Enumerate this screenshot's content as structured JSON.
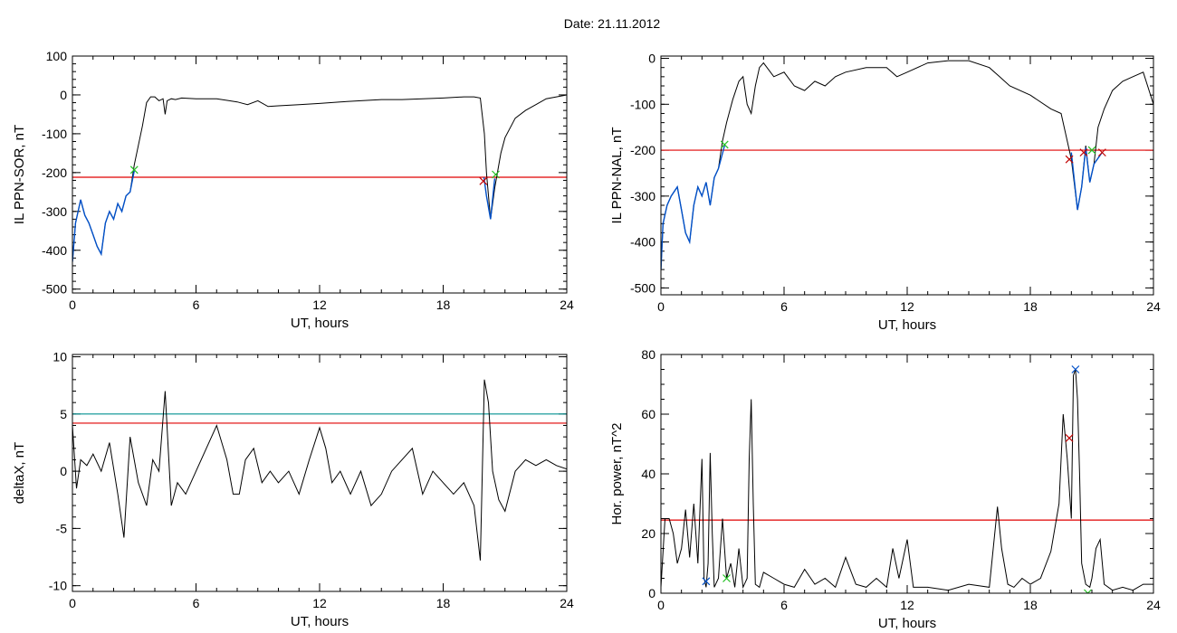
{
  "figure": {
    "title": "Date:  21.11.2012"
  },
  "chart_data": [
    {
      "id": "panel1",
      "type": "line",
      "xlabel": "UT, hours",
      "ylabel": "IL PPN-SOR, nT",
      "xlim": [
        0,
        24
      ],
      "ylim": [
        -510,
        100
      ],
      "xticks": [
        0,
        6,
        12,
        18,
        24
      ],
      "yticks": [
        100,
        0,
        -100,
        -200,
        -300,
        -400,
        -500
      ],
      "threshold": {
        "color": "#e00000",
        "value": -212
      },
      "series": [
        {
          "color": "#000000",
          "x": [
            0,
            0.15,
            0.4,
            0.6,
            0.8,
            1.0,
            1.2,
            1.4,
            1.6,
            1.8,
            2.0,
            2.2,
            2.4,
            2.6,
            2.8,
            3.0,
            3.2,
            3.4,
            3.6,
            3.8,
            4.0,
            4.2,
            4.4,
            4.5,
            4.6,
            4.8,
            5.0,
            5.3,
            6.0,
            7.0,
            8.0,
            8.5,
            9.0,
            9.5,
            10.0,
            11.0,
            12.0,
            13.0,
            14.0,
            15.0,
            16.0,
            17.0,
            18.0,
            19.0,
            19.5,
            19.8,
            20.0,
            20.1,
            20.3,
            20.5,
            20.8,
            21.0,
            21.5,
            22.0,
            22.5,
            23.0,
            23.5,
            24.0
          ],
          "y": [
            -430,
            -330,
            -270,
            -310,
            -330,
            -360,
            -390,
            -410,
            -330,
            -300,
            -320,
            -280,
            -300,
            -260,
            -250,
            -180,
            -130,
            -80,
            -20,
            -5,
            -5,
            -15,
            -10,
            -50,
            -15,
            -10,
            -12,
            -8,
            -10,
            -10,
            -18,
            -25,
            -15,
            -30,
            -28,
            -25,
            -22,
            -18,
            -15,
            -12,
            -12,
            -10,
            -8,
            -5,
            -5,
            -8,
            -100,
            -200,
            -320,
            -240,
            -150,
            -110,
            -60,
            -40,
            -25,
            -10,
            -5,
            0
          ]
        },
        {
          "color": "#0050c8",
          "x": [
            0,
            0.15,
            0.4,
            0.6,
            0.8,
            1.0,
            1.2,
            1.4,
            1.6,
            1.8,
            2.0,
            2.2,
            2.4,
            2.6,
            2.8,
            3.0
          ],
          "y": [
            -430,
            -330,
            -270,
            -310,
            -330,
            -360,
            -390,
            -410,
            -330,
            -300,
            -320,
            -280,
            -300,
            -260,
            -250,
            -195
          ]
        },
        {
          "color": "#0050c8",
          "x": [
            19.98,
            20.1,
            20.3,
            20.5
          ],
          "y": [
            -212,
            -260,
            -320,
            -215
          ]
        }
      ],
      "markers": [
        {
          "x": 3.0,
          "y": -193,
          "color": "#22c022"
        },
        {
          "x": 19.95,
          "y": -222,
          "color": "#c00000"
        },
        {
          "x": 20.55,
          "y": -205,
          "color": "#22c022"
        }
      ]
    },
    {
      "id": "panel2",
      "type": "line",
      "xlabel": "UT, hours",
      "ylabel": "IL PPN-NAL, nT",
      "xlim": [
        0,
        24
      ],
      "ylim": [
        -515,
        5
      ],
      "xticks": [
        0,
        6,
        12,
        18,
        24
      ],
      "yticks": [
        0,
        -100,
        -200,
        -300,
        -400,
        -500
      ],
      "threshold": {
        "color": "#e00000",
        "value": -200
      },
      "series": [
        {
          "color": "#000000",
          "x": [
            0,
            0.1,
            0.3,
            0.5,
            0.8,
            1.0,
            1.2,
            1.4,
            1.6,
            1.8,
            2.0,
            2.2,
            2.4,
            2.6,
            2.8,
            3.0,
            3.2,
            3.5,
            3.8,
            4.0,
            4.2,
            4.4,
            4.6,
            4.8,
            5.0,
            5.5,
            6.0,
            6.5,
            7.0,
            7.5,
            8.0,
            8.5,
            9.0,
            10.0,
            11.0,
            11.5,
            12.0,
            13.0,
            14.0,
            15.0,
            16.0,
            16.5,
            17.0,
            18.0,
            19.0,
            19.5,
            20.0,
            20.3,
            20.5,
            20.7,
            20.9,
            21.1,
            21.3,
            21.6,
            22.0,
            22.5,
            23.0,
            23.5,
            24.0
          ],
          "y": [
            -460,
            -360,
            -320,
            -300,
            -280,
            -330,
            -380,
            -400,
            -320,
            -280,
            -300,
            -270,
            -320,
            -260,
            -240,
            -180,
            -140,
            -90,
            -50,
            -40,
            -100,
            -120,
            -60,
            -20,
            -10,
            -40,
            -30,
            -60,
            -70,
            -50,
            -60,
            -40,
            -30,
            -20,
            -20,
            -40,
            -30,
            -10,
            -5,
            -5,
            -20,
            -40,
            -60,
            -80,
            -110,
            -120,
            -220,
            -330,
            -280,
            -190,
            -270,
            -230,
            -150,
            -110,
            -70,
            -50,
            -40,
            -30,
            -100
          ]
        },
        {
          "color": "#0050c8",
          "x": [
            0,
            0.1,
            0.3,
            0.5,
            0.8,
            1.0,
            1.2,
            1.4,
            1.6,
            1.8,
            2.0,
            2.2,
            2.4,
            2.6,
            2.8,
            3.1
          ],
          "y": [
            -460,
            -360,
            -320,
            -300,
            -280,
            -330,
            -380,
            -400,
            -320,
            -280,
            -300,
            -270,
            -320,
            -260,
            -240,
            -190
          ]
        },
        {
          "color": "#0050c8",
          "x": [
            20.0,
            20.3,
            20.5,
            20.7,
            20.9,
            21.1,
            21.5
          ],
          "y": [
            -205,
            -330,
            -280,
            -195,
            -270,
            -230,
            -205
          ]
        }
      ],
      "markers": [
        {
          "x": 3.1,
          "y": -188,
          "color": "#22c022"
        },
        {
          "x": 19.9,
          "y": -220,
          "color": "#c00000"
        },
        {
          "x": 20.6,
          "y": -205,
          "color": "#c00000"
        },
        {
          "x": 21.0,
          "y": -200,
          "color": "#22c022"
        },
        {
          "x": 21.5,
          "y": -205,
          "color": "#c00000"
        }
      ]
    },
    {
      "id": "panel3",
      "type": "line",
      "xlabel": "UT, hours",
      "ylabel": "deltaX, nT",
      "xlim": [
        0,
        24
      ],
      "ylim": [
        -10.5,
        10.2
      ],
      "xticks": [
        0,
        6,
        12,
        18,
        24
      ],
      "yticks": [
        10,
        5,
        0,
        -5,
        -10
      ],
      "threshold": {
        "color": "#e00000",
        "value": 4.2
      },
      "threshold2": {
        "color": "#009090",
        "value": 5.0
      },
      "series": [
        {
          "color": "#000000",
          "x": [
            0,
            0.2,
            0.4,
            0.7,
            1.0,
            1.4,
            1.8,
            2.2,
            2.5,
            2.8,
            3.2,
            3.6,
            3.9,
            4.2,
            4.5,
            4.8,
            5.1,
            5.5,
            6.0,
            6.5,
            7.0,
            7.5,
            7.8,
            8.1,
            8.4,
            8.8,
            9.2,
            9.6,
            10.0,
            10.5,
            11.0,
            11.5,
            12.0,
            12.3,
            12.6,
            13.0,
            13.5,
            14.0,
            14.5,
            15.0,
            15.5,
            16.0,
            16.5,
            17.0,
            17.5,
            18.0,
            18.5,
            19.0,
            19.5,
            19.8,
            20.0,
            20.2,
            20.4,
            20.7,
            21.0,
            21.5,
            22.0,
            22.5,
            23.0,
            23.5,
            24.0
          ],
          "y": [
            4,
            -1.5,
            1,
            0.5,
            1.5,
            0,
            2.5,
            -2,
            -5.8,
            3,
            -1,
            -3,
            1,
            0,
            7,
            -3,
            -1,
            -2,
            0,
            2,
            4,
            1,
            -2,
            -2,
            1,
            2,
            -1,
            0,
            -1,
            0,
            -2,
            1,
            3.8,
            2,
            -1,
            0,
            -2,
            0,
            -3,
            -2,
            0,
            1,
            2,
            -2,
            0,
            -1,
            -2,
            -1,
            -3,
            -7.8,
            8,
            6,
            0,
            -2.5,
            -3.5,
            0,
            1,
            0.5,
            1,
            0.5,
            0.2
          ]
        }
      ],
      "markers": []
    },
    {
      "id": "panel4",
      "type": "line",
      "xlabel": "UT, hours",
      "ylabel": "Hor. power, nT^2",
      "xlim": [
        0,
        24
      ],
      "ylim": [
        0,
        80
      ],
      "xticks": [
        0,
        6,
        12,
        18,
        24
      ],
      "yticks": [
        0,
        20,
        40,
        60,
        80
      ],
      "threshold": {
        "color": "#e00000",
        "value": 24.5
      },
      "series": [
        {
          "color": "#000000",
          "x": [
            0,
            0.2,
            0.4,
            0.6,
            0.8,
            1.0,
            1.2,
            1.4,
            1.6,
            1.8,
            2.0,
            2.1,
            2.2,
            2.3,
            2.4,
            2.5,
            2.6,
            2.8,
            3.0,
            3.2,
            3.4,
            3.6,
            3.8,
            4.0,
            4.2,
            4.3,
            4.4,
            4.5,
            4.6,
            4.8,
            5.0,
            5.5,
            6.0,
            6.5,
            7.0,
            7.5,
            8.0,
            8.5,
            9.0,
            9.5,
            10.0,
            10.5,
            11.0,
            11.3,
            11.6,
            12.0,
            12.3,
            12.6,
            13.0,
            14.0,
            15.0,
            16.0,
            16.4,
            16.6,
            16.9,
            17.2,
            17.6,
            18.0,
            18.5,
            19.0,
            19.4,
            19.6,
            19.8,
            20.0,
            20.1,
            20.2,
            20.3,
            20.4,
            20.5,
            20.7,
            20.9,
            21.0,
            21.2,
            21.4,
            21.6,
            22.0,
            22.5,
            23.0,
            23.5,
            24.0
          ],
          "y": [
            2,
            25,
            25,
            20,
            10,
            15,
            28,
            12,
            30,
            10,
            45,
            5,
            2,
            10,
            47,
            20,
            2,
            5,
            25,
            5,
            10,
            2,
            15,
            2,
            5,
            45,
            65,
            30,
            3,
            2,
            7,
            5,
            3,
            2,
            8,
            3,
            5,
            2,
            12,
            3,
            2,
            5,
            2,
            15,
            5,
            18,
            2,
            2,
            2,
            1,
            3,
            2,
            29,
            15,
            3,
            2,
            5,
            3,
            5,
            14,
            30,
            60,
            45,
            25,
            73,
            75,
            65,
            40,
            10,
            3,
            2,
            5,
            15,
            18,
            3,
            1,
            2,
            1,
            3,
            3
          ]
        }
      ],
      "markers": [
        {
          "x": 2.2,
          "y": 4,
          "color": "#0050c8"
        },
        {
          "x": 3.2,
          "y": 5,
          "color": "#22c022"
        },
        {
          "x": 19.9,
          "y": 52,
          "color": "#c00000"
        },
        {
          "x": 20.2,
          "y": 75,
          "color": "#0050c8"
        },
        {
          "x": 20.8,
          "y": 0,
          "color": "#22c022"
        }
      ]
    }
  ]
}
